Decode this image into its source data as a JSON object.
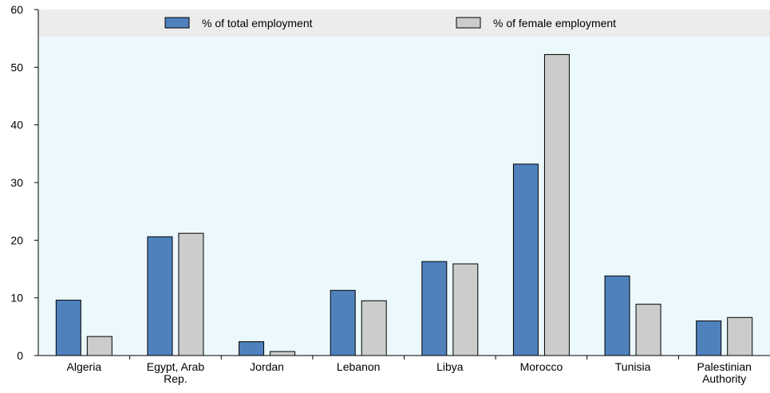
{
  "chart_data": {
    "type": "bar",
    "title": "",
    "xlabel": "",
    "ylabel": "",
    "categories": [
      [
        "Algeria"
      ],
      [
        "Egypt, Arab",
        "Rep."
      ],
      [
        "Jordan"
      ],
      [
        "Lebanon"
      ],
      [
        "Libya"
      ],
      [
        "Morocco"
      ],
      [
        "Tunisia"
      ],
      [
        "Palestinian",
        "Authority"
      ]
    ],
    "series": [
      {
        "name": "% of total employment",
        "color": "#4f81bd",
        "values": [
          9.6,
          20.6,
          2.4,
          11.3,
          16.3,
          33.2,
          13.8,
          6.0
        ]
      },
      {
        "name": "% of female employment",
        "color": "#cccccc",
        "values": [
          3.3,
          21.2,
          0.7,
          9.5,
          15.9,
          52.2,
          8.9,
          6.6
        ]
      }
    ],
    "ylim": [
      0,
      60
    ],
    "yticks": [
      0,
      10,
      20,
      30,
      40,
      50,
      60
    ],
    "grid": false,
    "legend_position": "top",
    "plot_background": "#ebf9fc",
    "legend_band_background": "#ececec",
    "bar_outline": "#000000"
  }
}
